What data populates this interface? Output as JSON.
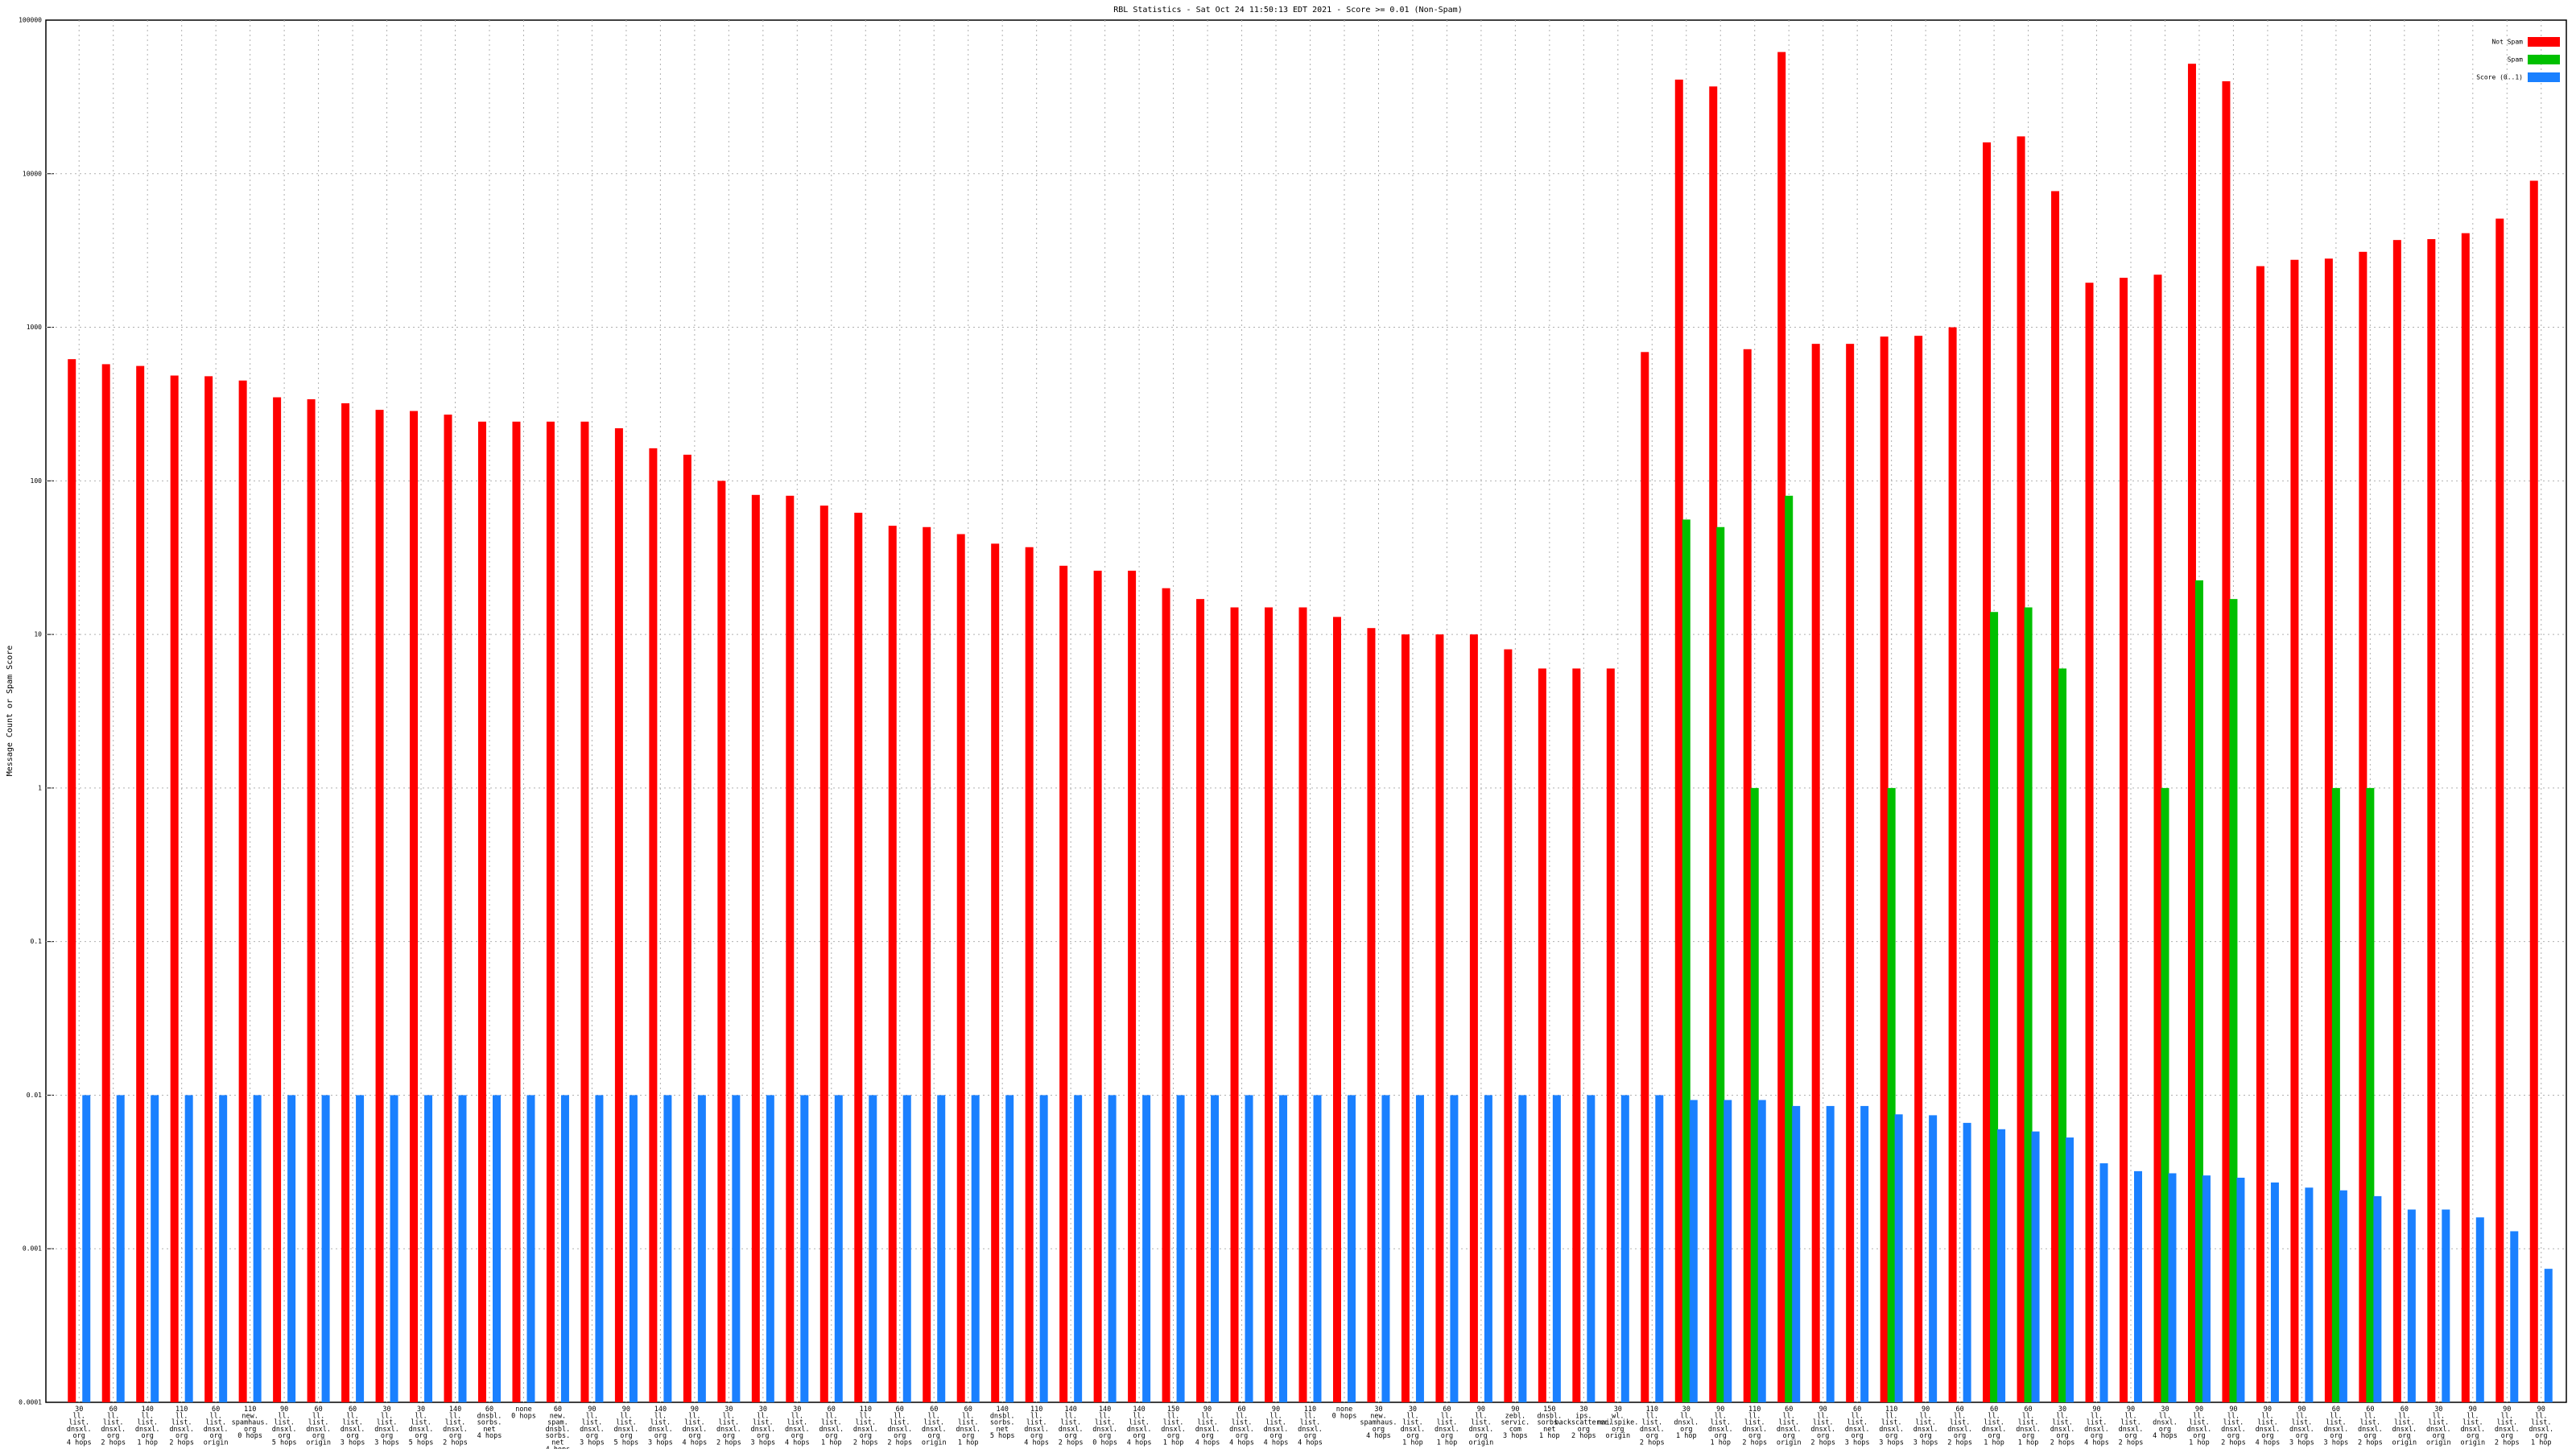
{
  "chart_data": {
    "type": "bar",
    "title": "RBL Statistics - Sat Oct 24 11:50:13 EDT 2021 - Score >= 0.01 (Non-Spam)",
    "y_label": "Message Count or Spam Score",
    "log_scale": true,
    "grid": true,
    "legend": "top right",
    "ylim": [
      0.0001,
      100000
    ],
    "yticks": [
      0.0001,
      0.001,
      0.01,
      0.1,
      1,
      10,
      100,
      1000,
      10000,
      100000
    ],
    "categories": [
      "30\nll.\nlist.\ndnsxl.\norg\n4 hops",
      "60\nll.\nlist.\ndnsxl.\norg\n2 hops",
      "140\nll.\nlist.\ndnsxl.\norg\n1 hop",
      "110\nll.\nlist.\ndnsxl.\norg\n2 hops",
      "60\nll.\nlist.\ndnsxl.\norg\norigin",
      "110\nnew.\nspamhaus.\norg\n0 hops",
      "90\nll.\nlist.\ndnsxl.\norg\n5 hops",
      "60\nll.\nlist.\ndnsxl.\norg\norigin",
      "60\nll.\nlist.\ndnsxl.\norg\n3 hops",
      "30\nll.\nlist.\ndnsxl.\norg\n3 hops",
      "30\nll.\nlist.\ndnsxl.\norg\n5 hops",
      "140\nll.\nlist.\ndnsxl.\norg\n2 hops",
      "60\ndnsbl.\nsorbs.\nnet\n4 hops",
      "none\n0 hops",
      "60\nnew.\nspam.\ndnsbl.\nsorbs.\nnet\n4 hops",
      "90\nll.\nlist.\ndnsxl.\norg\n3 hops",
      "90\nll.\nlist.\ndnsxl.\norg\n5 hops",
      "140\nll.\nlist.\ndnsxl.\norg\n3 hops",
      "90\nll.\nlist.\ndnsxl.\norg\n4 hops",
      "30\nll.\nlist.\ndnsxl.\norg\n2 hops",
      "30\nll.\nlist.\ndnsxl.\norg\n3 hops",
      "30\nll.\nlist.\ndnsxl.\norg\n4 hops",
      "60\nll.\nlist.\ndnsxl.\norg\n1 hop",
      "110\nll.\nlist.\ndnsxl.\norg\n2 hops",
      "60\nll.\nlist.\ndnsxl.\norg\n2 hops",
      "60\nll.\nlist.\ndnsxl.\norg\norigin",
      "60\nll.\nlist.\ndnsxl.\norg\n1 hop",
      "140\ndnsbl.\nsorbs.\nnet\n5 hops",
      "110\nll.\nlist.\ndnsxl.\norg\n4 hops",
      "140\nll.\nlist.\ndnsxl.\norg\n2 hops",
      "140\nll.\nlist.\ndnsxl.\norg\n0 hops",
      "140\nll.\nlist.\ndnsxl.\norg\n4 hops",
      "150\nll.\nlist.\ndnsxl.\norg\n1 hop",
      "90\nll.\nlist.\ndnsxl.\norg\n4 hops",
      "60\nll.\nlist.\ndnsxl.\norg\n4 hops",
      "90\nll.\nlist.\ndnsxl.\norg\n4 hops",
      "110\nll.\nlist.\ndnsxl.\norg\n4 hops",
      "none\n0 hops",
      "30\nnew.\nspamhaus.\norg\n4 hops",
      "30\nll.\nlist.\ndnsxl.\norg\n1 hop",
      "60\nll.\nlist.\ndnsxl.\norg\n1 hop",
      "90\nll.\nlist.\ndnsxl.\norg\norigin",
      "90\nzebl.\nservic.\ncom\n3 hops",
      "150\ndnsbl.\nsorbs.\nnet\n1 hop",
      "30\nips.\nbackscatterer.\norg\n2 hops",
      "30\nwl.\nmailspike.\norg\norigin",
      "110\nll.\nlist.\ndnsxl.\norg\n2 hops",
      "30\nll.\ndnsxl.\norg\n1 hop",
      "90\nll.\nlist.\ndnsxl.\norg\n1 hop",
      "110\nll.\nlist.\ndnsxl.\norg\n2 hops",
      "60\nll.\nlist.\ndnsxl.\norg\norigin",
      "90\nll.\nlist.\ndnsxl.\norg\n2 hops",
      "60\nll.\nlist.\ndnsxl.\norg\n3 hops",
      "110\nll.\nlist.\ndnsxl.\norg\n3 hops",
      "90\nll.\nlist.\ndnsxl.\norg\n3 hops",
      "60\nll.\nlist.\ndnsxl.\norg\n2 hops",
      "60\nll.\nlist.\ndnsxl.\norg\n1 hop",
      "60\nll.\nlist.\ndnsxl.\norg\n1 hop",
      "30\nll.\nlist.\ndnsxl.\norg\n2 hops",
      "90\nll.\nlist.\ndnsxl.\norg\n4 hops",
      "90\nll.\nlist.\ndnsxl.\norg\n2 hops",
      "30\nll.\ndnsxl.\norg\n4 hops",
      "90\nll.\nlist.\ndnsxl.\norg\n1 hop",
      "90\nll.\nlist.\ndnsxl.\norg\n2 hops",
      "90\nll.\nlist.\ndnsxl.\norg\n4 hops",
      "90\nll.\nlist.\ndnsxl.\norg\n3 hops",
      "60\nll.\nlist.\ndnsxl.\norg\n3 hops",
      "60\nll.\nlist.\ndnsxl.\norg\n2 hops",
      "60\nll.\nlist.\ndnsxl.\norg\norigin",
      "30\nll.\nlist.\ndnsxl.\norg\norigin",
      "90\nll.\nlist.\ndnsxl.\norg\norigin",
      "90\nll.\nlist.\ndnsxl.\norg\n2 hops",
      "90\nll.\nlist.\ndnsxl.\norg\n1 hop"
    ],
    "series": [
      {
        "name": "Not Spam",
        "color": "#ff0000",
        "values": [
          620,
          575,
          560,
          485,
          480,
          450,
          350,
          340,
          320,
          290,
          285,
          270,
          243,
          243,
          243,
          243,
          220,
          163,
          148,
          100,
          81,
          80,
          69,
          62,
          51,
          50,
          45,
          39,
          37,
          28,
          26,
          26,
          20,
          17,
          15,
          15,
          15,
          13,
          11,
          10,
          10,
          10,
          8,
          6,
          6,
          6,
          690,
          41000,
          37000,
          720,
          62000,
          780,
          780,
          870,
          880,
          1000,
          16000,
          17500,
          7700,
          1950,
          2100,
          2200,
          52000,
          40000,
          2500,
          2750,
          2800,
          3100,
          3700,
          3750,
          4100,
          5100,
          9000
        ]
      },
      {
        "name": "Spam",
        "color": "#00c000",
        "values": [
          null,
          null,
          null,
          null,
          null,
          null,
          null,
          null,
          null,
          null,
          null,
          null,
          null,
          null,
          null,
          null,
          null,
          null,
          null,
          null,
          null,
          null,
          null,
          null,
          null,
          null,
          null,
          null,
          null,
          null,
          null,
          null,
          null,
          null,
          null,
          null,
          null,
          null,
          null,
          null,
          null,
          null,
          null,
          null,
          null,
          null,
          null,
          56,
          50,
          1,
          80,
          null,
          null,
          1,
          null,
          null,
          14,
          15,
          6,
          null,
          null,
          1,
          22.5,
          17,
          null,
          null,
          1,
          1,
          null,
          null,
          null,
          null,
          null
        ]
      },
      {
        "name": "Score (0..1)",
        "color": "#1a80ff",
        "values": [
          0.01,
          0.01,
          0.01,
          0.01,
          0.01,
          0.01,
          0.01,
          0.01,
          0.01,
          0.01,
          0.01,
          0.01,
          0.01,
          0.01,
          0.01,
          0.01,
          0.01,
          0.01,
          0.01,
          0.01,
          0.01,
          0.01,
          0.01,
          0.01,
          0.01,
          0.01,
          0.01,
          0.01,
          0.01,
          0.01,
          0.01,
          0.01,
          0.01,
          0.01,
          0.01,
          0.01,
          0.01,
          0.01,
          0.01,
          0.01,
          0.01,
          0.01,
          0.01,
          0.01,
          0.01,
          0.01,
          0.01,
          0.0093,
          0.0093,
          0.0093,
          0.0085,
          0.0085,
          0.0085,
          0.0075,
          0.0074,
          0.0066,
          0.006,
          0.0058,
          0.0053,
          0.0036,
          0.0032,
          0.0031,
          0.003,
          0.0029,
          0.0027,
          0.0025,
          0.0024,
          0.0022,
          0.0018,
          0.0018,
          0.0016,
          0.0013,
          0.00074
        ]
      }
    ]
  }
}
